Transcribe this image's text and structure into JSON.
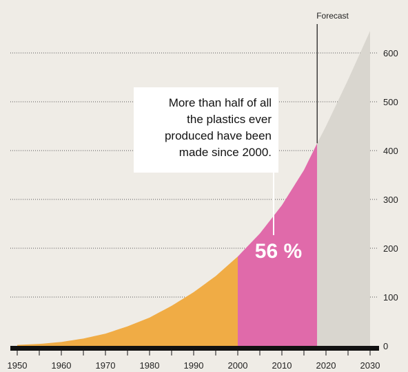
{
  "chart_data": {
    "type": "area",
    "title": "",
    "xlabel": "",
    "ylabel": "",
    "x": [
      1950,
      1955,
      1960,
      1965,
      1970,
      1975,
      1980,
      1985,
      1990,
      1995,
      2000,
      2005,
      2010,
      2015,
      2018,
      2020,
      2025,
      2030
    ],
    "y": [
      2,
      4,
      8,
      15,
      25,
      40,
      58,
      82,
      110,
      143,
      183,
      230,
      288,
      360,
      415,
      450,
      545,
      645
    ],
    "xlim": [
      1950,
      2030
    ],
    "ylim": [
      0,
      650
    ],
    "x_ticks": [
      1950,
      1960,
      1970,
      1980,
      1990,
      2000,
      2010,
      2020,
      2030
    ],
    "y_ticks": [
      0,
      100,
      200,
      300,
      400,
      500,
      600
    ],
    "grid": "horizontal dotted",
    "segments": [
      {
        "from": 1950,
        "to": 2000,
        "color": "#f0ac45"
      },
      {
        "from": 2000,
        "to": 2018,
        "color": "#e06aaa"
      },
      {
        "from": 2018,
        "to": 2030,
        "color": "#d9d6cf"
      }
    ],
    "annotations": {
      "forecast_label": "Forecast",
      "forecast_x": 2018,
      "callout_lines": [
        "More than half of all",
        "the plastics ever",
        "produced have been",
        "made since 2000."
      ],
      "percent_label": "56 %"
    }
  }
}
